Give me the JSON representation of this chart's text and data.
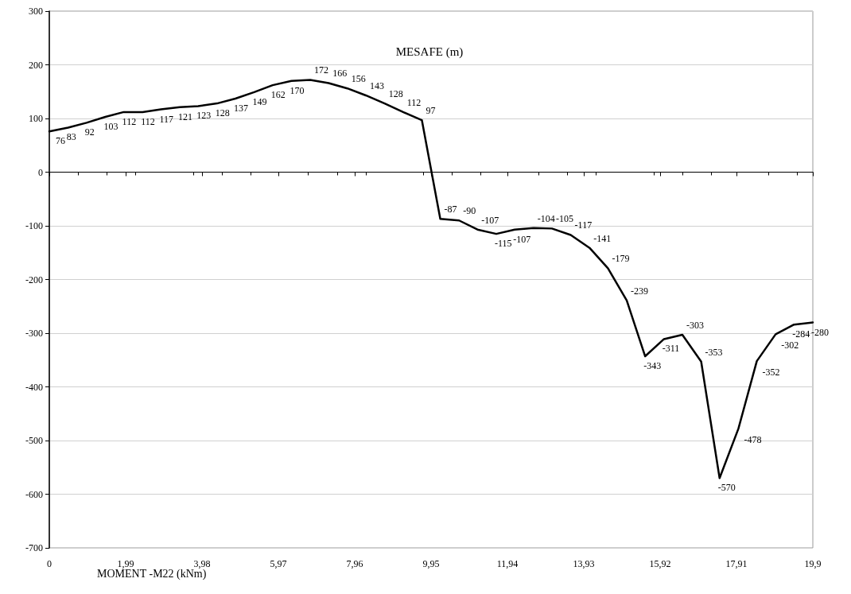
{
  "chart_data": {
    "type": "line",
    "title": "MESAFE (m)",
    "annotations": [
      "MOMENT -M22 (kNm)"
    ],
    "x": [
      0,
      0.49,
      0.97,
      1.46,
      1.94,
      2.43,
      2.91,
      3.4,
      3.88,
      4.37,
      4.85,
      5.34,
      5.82,
      6.31,
      6.8,
      7.28,
      7.77,
      8.25,
      8.74,
      9.22,
      9.71,
      10.19,
      10.68,
      11.16,
      11.65,
      12.13,
      12.62,
      13.1,
      13.59,
      14.08,
      14.56,
      15.05,
      15.53,
      16.02,
      16.5,
      16.99,
      17.47,
      17.96,
      18.44,
      18.93,
      19.41,
      19.9
    ],
    "series": [
      {
        "color": "#000000",
        "values": [
          76,
          83,
          92,
          103,
          112,
          112,
          117,
          121,
          123,
          128,
          137,
          149,
          162,
          170,
          172,
          166,
          156,
          143,
          128,
          112,
          97,
          -87,
          -90,
          -107,
          -115,
          -107,
          -104,
          -105,
          -117,
          -141,
          -179,
          -239,
          -343,
          -311,
          -303,
          -353,
          -570,
          -478,
          -352,
          -302,
          -284,
          -280
        ]
      }
    ],
    "xlim": [
      0,
      19.9
    ],
    "xticks": [
      0,
      {
        "value": 1.99,
        "label": "1,99"
      },
      {
        "value": 3.98,
        "label": "3,98"
      },
      {
        "value": 5.97,
        "label": "5,97"
      },
      {
        "value": 7.96,
        "label": "7,96"
      },
      {
        "value": 9.95,
        "label": "9,95"
      },
      {
        "value": 11.94,
        "label": "11,94"
      },
      {
        "value": 13.93,
        "label": "13,93"
      },
      {
        "value": 15.92,
        "label": "15,92"
      },
      {
        "value": 17.91,
        "label": "17,91"
      },
      {
        "value": 19.9,
        "label": "19,9"
      }
    ],
    "ylim": [
      -700,
      300
    ],
    "yticks": [
      -700,
      -600,
      -500,
      -400,
      -300,
      -200,
      -100,
      0,
      100,
      200,
      300
    ],
    "grid": "y",
    "marker": "none",
    "line_style": "solid",
    "data_labels": true
  }
}
